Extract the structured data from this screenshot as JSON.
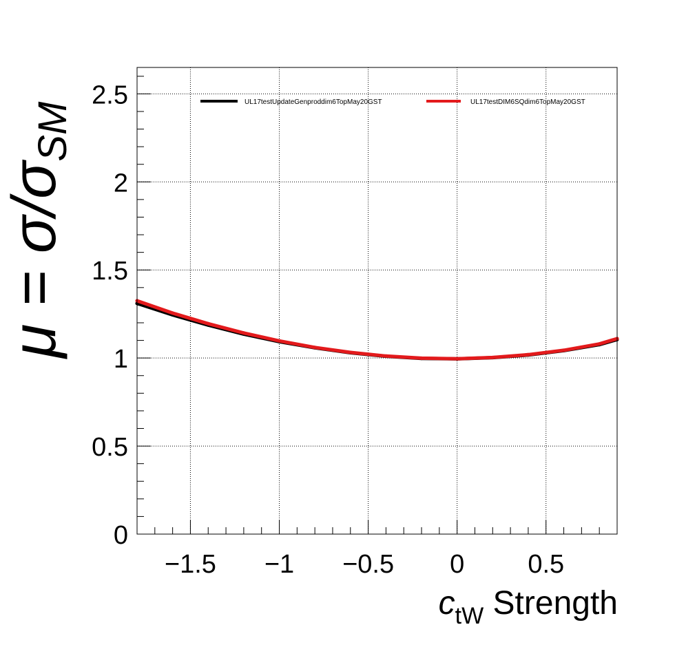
{
  "chart_data": {
    "type": "line",
    "title": "",
    "xlabel": {
      "var": "c",
      "sub": "tW",
      "rest": " Strength"
    },
    "ylabel": {
      "main": "μ = σ/σ",
      "sub": "SM"
    },
    "xlim": [
      -1.8,
      0.9
    ],
    "ylim": [
      0,
      2.65
    ],
    "x_ticks": [
      {
        "value": -1.5,
        "label": "−1.5"
      },
      {
        "value": -1.0,
        "label": "−1"
      },
      {
        "value": -0.5,
        "label": "−0.5"
      },
      {
        "value": 0.0,
        "label": "0"
      },
      {
        "value": 0.5,
        "label": "0.5"
      }
    ],
    "y_ticks": [
      {
        "value": 0,
        "label": "0"
      },
      {
        "value": 0.5,
        "label": "0.5"
      },
      {
        "value": 1.0,
        "label": "1"
      },
      {
        "value": 1.5,
        "label": "1.5"
      },
      {
        "value": 2.0,
        "label": "2"
      },
      {
        "value": 2.5,
        "label": "2.5"
      }
    ],
    "grid": true,
    "legend_position": "top",
    "series": [
      {
        "name": "UL17testUpdateGenproddim6TopMay20GST",
        "color": "#000000",
        "x": [
          -1.8,
          -1.6,
          -1.4,
          -1.2,
          -1.0,
          -0.8,
          -0.6,
          -0.4,
          -0.2,
          0.0,
          0.2,
          0.4,
          0.6,
          0.8,
          0.9
        ],
        "y": [
          1.31,
          1.245,
          1.187,
          1.136,
          1.093,
          1.058,
          1.03,
          1.01,
          0.998,
          0.995,
          1.002,
          1.017,
          1.042,
          1.076,
          1.105
        ]
      },
      {
        "name": "UL17testDIM6SQdim6TopMay20GST",
        "color": "#e31a1c",
        "x": [
          -1.8,
          -1.6,
          -1.4,
          -1.2,
          -1.0,
          -0.8,
          -0.6,
          -0.4,
          -0.2,
          0.0,
          0.2,
          0.4,
          0.6,
          0.8,
          0.9
        ],
        "y": [
          1.325,
          1.255,
          1.195,
          1.142,
          1.097,
          1.06,
          1.032,
          1.011,
          0.999,
          0.996,
          1.003,
          1.019,
          1.044,
          1.08,
          1.11
        ]
      }
    ]
  }
}
